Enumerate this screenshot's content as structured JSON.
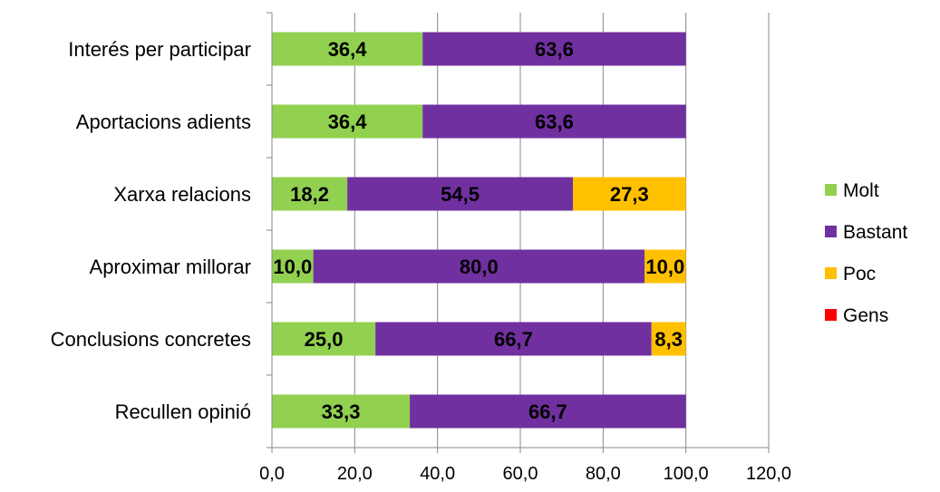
{
  "chart_data": {
    "type": "bar",
    "orientation": "horizontal",
    "stacked": true,
    "categories": [
      "Interés per participar",
      "Aportacions adients",
      "Xarxa relacions",
      "Aproximar millorar",
      "Conclusions concretes",
      "Recullen opinió"
    ],
    "series": [
      {
        "name": "Molt",
        "color": "#92d050",
        "values": [
          36.4,
          36.4,
          18.2,
          10.0,
          25.0,
          33.3
        ]
      },
      {
        "name": "Bastant",
        "color": "#7030a0",
        "values": [
          63.6,
          63.6,
          54.5,
          80.0,
          66.7,
          66.7
        ]
      },
      {
        "name": "Poc",
        "color": "#ffc000",
        "values": [
          0,
          0,
          27.3,
          10.0,
          8.3,
          0
        ]
      },
      {
        "name": "Gens",
        "color": "#ff0000",
        "values": [
          0,
          0,
          0,
          0,
          0,
          0
        ]
      }
    ],
    "xlim": [
      0,
      120
    ],
    "x_ticks": [
      "0,0",
      "20,0",
      "40,0",
      "60,0",
      "80,0",
      "100,0",
      "120,0"
    ],
    "grid": "vertical",
    "legend": "right"
  }
}
